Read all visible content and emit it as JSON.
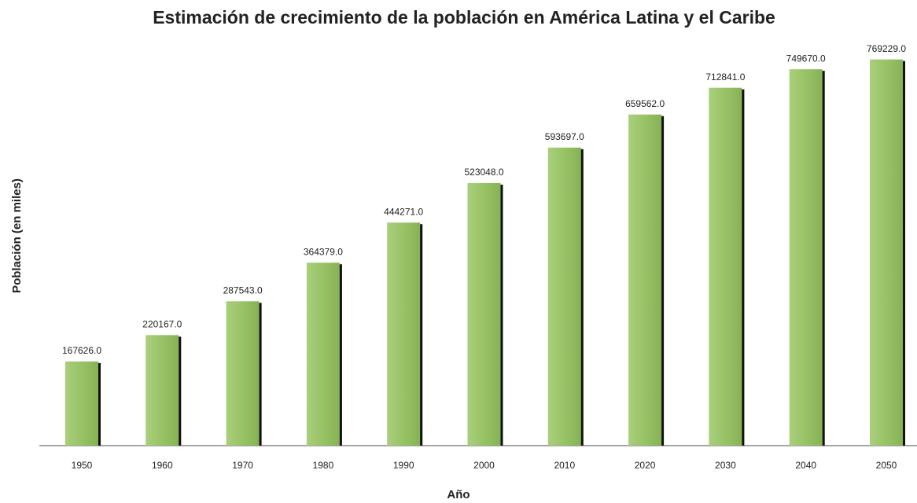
{
  "chart_data": {
    "type": "bar",
    "title": "Estimación de crecimiento de la población en América Latina y el Caribe",
    "x_label": "Año",
    "y_label": "Población (en miles)",
    "categories": [
      "1950",
      "1960",
      "1970",
      "1980",
      "1990",
      "2000",
      "2010",
      "2020",
      "2030",
      "2040",
      "2050"
    ],
    "values": [
      167626,
      220167,
      287543,
      364379,
      444271,
      523048,
      593697,
      659562,
      712841,
      749670,
      769229
    ],
    "value_labels": [
      "167626.0",
      "220167.0",
      "287543.0",
      "364379.0",
      "444271.0",
      "523048.0",
      "593697.0",
      "659562.0",
      "712841.0",
      "749670.0",
      "769229.0"
    ],
    "color": "#9bc46a",
    "ylim": [
      0,
      800000
    ]
  }
}
